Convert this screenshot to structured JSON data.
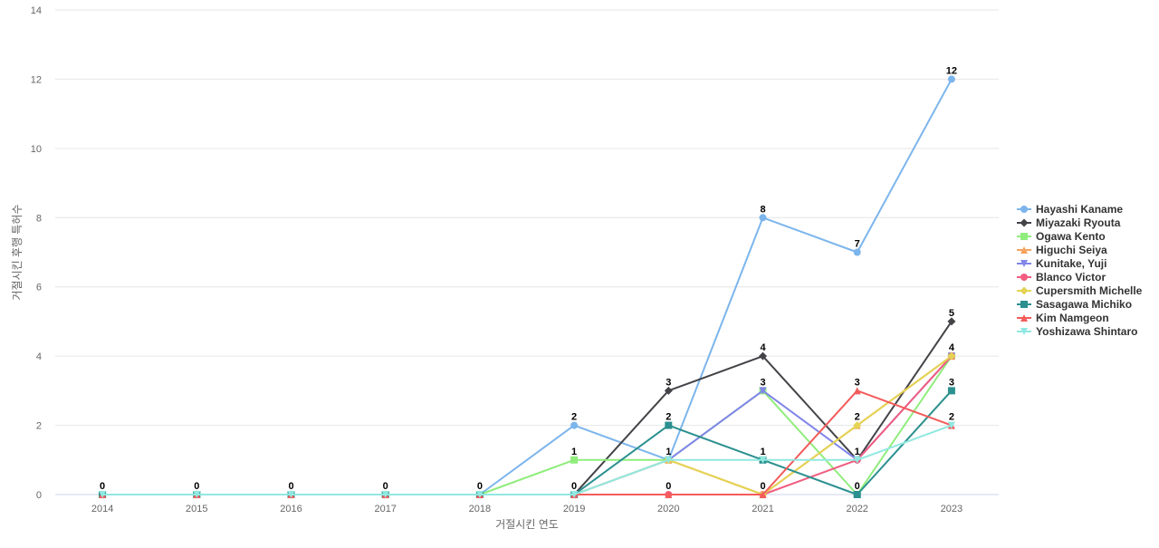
{
  "chart_data": {
    "type": "line",
    "title": "",
    "xlabel": "거절시킨 연도",
    "ylabel": "거절시킨 후행 특허수",
    "categories": [
      "2014",
      "2015",
      "2016",
      "2017",
      "2018",
      "2019",
      "2020",
      "2021",
      "2022",
      "2023"
    ],
    "ylim": [
      0,
      14
    ],
    "yticks": [
      0,
      2,
      4,
      6,
      8,
      10,
      12,
      14
    ],
    "grid": true,
    "legend_position": "right",
    "series": [
      {
        "name": "Hayashi Kaname",
        "color": "#7cb5ec",
        "marker": "circle",
        "values": [
          0,
          0,
          0,
          0,
          0,
          2,
          1,
          8,
          7,
          12
        ]
      },
      {
        "name": "Miyazaki Ryouta",
        "color": "#434348",
        "marker": "diamond",
        "values": [
          0,
          0,
          0,
          0,
          0,
          0,
          3,
          4,
          1,
          5
        ]
      },
      {
        "name": "Ogawa Kento",
        "color": "#90ed7d",
        "marker": "square",
        "values": [
          0,
          0,
          0,
          0,
          0,
          1,
          1,
          3,
          0,
          4
        ]
      },
      {
        "name": "Higuchi Seiya",
        "color": "#f7a35c",
        "marker": "triangle",
        "values": [
          0,
          0,
          0,
          0,
          0,
          0,
          1,
          0,
          2,
          4
        ]
      },
      {
        "name": "Kunitake, Yuji",
        "color": "#8085e9",
        "marker": "triangle-down",
        "values": [
          0,
          0,
          0,
          0,
          0,
          0,
          1,
          3,
          1,
          4
        ]
      },
      {
        "name": "Blanco Victor",
        "color": "#f15c80",
        "marker": "circle",
        "values": [
          0,
          0,
          0,
          0,
          0,
          0,
          0,
          0,
          1,
          4
        ]
      },
      {
        "name": "Cupersmith Michelle",
        "color": "#e4d354",
        "marker": "diamond",
        "values": [
          0,
          0,
          0,
          0,
          0,
          0,
          1,
          0,
          2,
          4
        ]
      },
      {
        "name": "Sasagawa Michiko",
        "color": "#2b908f",
        "marker": "square",
        "values": [
          0,
          0,
          0,
          0,
          0,
          0,
          2,
          1,
          0,
          3
        ]
      },
      {
        "name": "Kim Namgeon",
        "color": "#f45b5b",
        "marker": "triangle",
        "values": [
          0,
          0,
          0,
          0,
          0,
          0,
          0,
          0,
          3,
          2
        ]
      },
      {
        "name": "Yoshizawa Shintaro",
        "color": "#91e8e1",
        "marker": "triangle-down",
        "values": [
          0,
          0,
          0,
          0,
          0,
          0,
          1,
          1,
          1,
          2
        ]
      }
    ],
    "data_labels": [
      {
        "category": "2014",
        "value": 0,
        "text": "0"
      },
      {
        "category": "2015",
        "value": 0,
        "text": "0"
      },
      {
        "category": "2016",
        "value": 0,
        "text": "0"
      },
      {
        "category": "2017",
        "value": 0,
        "text": "0"
      },
      {
        "category": "2018",
        "value": 0,
        "text": "0"
      },
      {
        "category": "2019",
        "value": 2,
        "text": "2"
      },
      {
        "category": "2019",
        "value": 1,
        "text": "1"
      },
      {
        "category": "2019",
        "value": 0,
        "text": "0"
      },
      {
        "category": "2020",
        "value": 3,
        "text": "3"
      },
      {
        "category": "2020",
        "value": 2,
        "text": "2"
      },
      {
        "category": "2020",
        "value": 1,
        "text": "1"
      },
      {
        "category": "2020",
        "value": 0,
        "text": "0"
      },
      {
        "category": "2021",
        "value": 8,
        "text": "8"
      },
      {
        "category": "2021",
        "value": 4,
        "text": "4"
      },
      {
        "category": "2021",
        "value": 3,
        "text": "3"
      },
      {
        "category": "2021",
        "value": 1,
        "text": "1"
      },
      {
        "category": "2021",
        "value": 0,
        "text": "0"
      },
      {
        "category": "2022",
        "value": 7,
        "text": "7"
      },
      {
        "category": "2022",
        "value": 3,
        "text": "3"
      },
      {
        "category": "2022",
        "value": 2,
        "text": "2"
      },
      {
        "category": "2022",
        "value": 1,
        "text": "1"
      },
      {
        "category": "2022",
        "value": 0,
        "text": "0"
      },
      {
        "category": "2023",
        "value": 12,
        "text": "12"
      },
      {
        "category": "2023",
        "value": 5,
        "text": "5"
      },
      {
        "category": "2023",
        "value": 4,
        "text": "4"
      },
      {
        "category": "2023",
        "value": 3,
        "text": "3"
      },
      {
        "category": "2023",
        "value": 2,
        "text": "2"
      }
    ]
  }
}
